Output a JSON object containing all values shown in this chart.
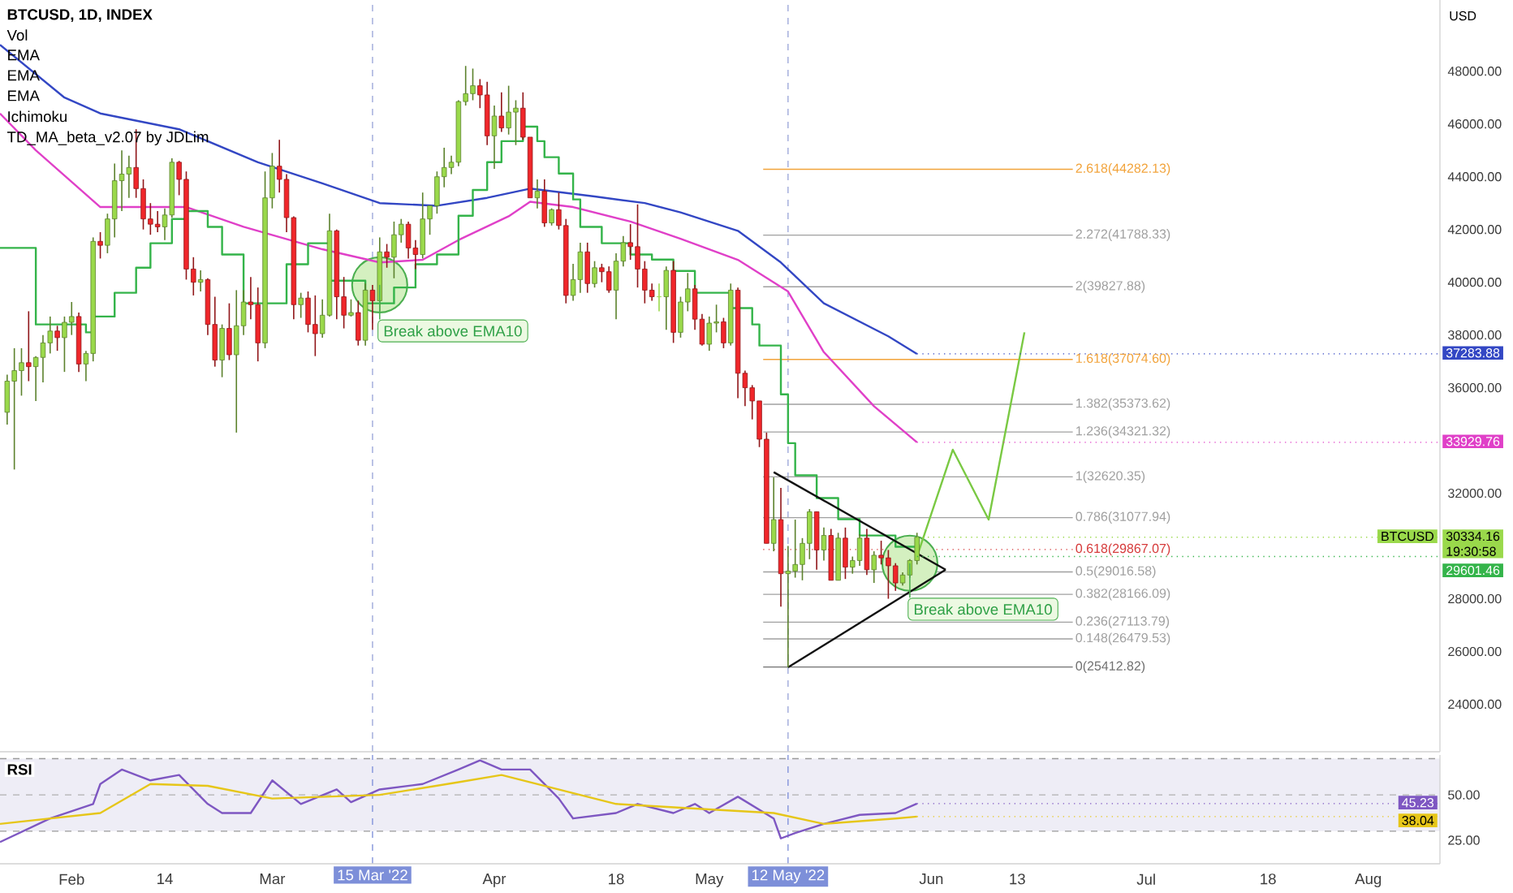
{
  "chart_data": [
    {
      "type": "candlestick",
      "title": "BTCUSD, 1D, INDEX",
      "ylabel": "USD",
      "xlim": [
        "2022-01-22",
        "2022-08-11"
      ],
      "ylim": [
        22200,
        50700
      ],
      "tick_labels": "y",
      "yticks": [
        {
          "value": 24000,
          "label": "24000.00"
        },
        {
          "value": 26000,
          "label": "26000.00"
        },
        {
          "value": 28000,
          "label": "28000.00"
        },
        {
          "value": 32000,
          "label": "32000.00"
        },
        {
          "value": 36000,
          "label": "36000.00"
        },
        {
          "value": 38000,
          "label": "38000.00"
        },
        {
          "value": 40000,
          "label": "40000.00"
        },
        {
          "value": 42000,
          "label": "42000.00"
        },
        {
          "value": 44000,
          "label": "44000.00"
        },
        {
          "value": 46000,
          "label": "46000.00"
        },
        {
          "value": 48000,
          "label": "48000.00"
        }
      ],
      "series": [
        {
          "name": "BTCUSD",
          "colors": [
            "#9ad94b",
            "#9ad94b",
            "#9ad94b",
            "#f0262a",
            "#9ad94b",
            "#9ad94b",
            "#9ad94b",
            "#f0262a",
            "#9ad94b",
            "#9ad94b",
            "#f0262a",
            "#9ad94b",
            "#9ad94b",
            "#f0262a",
            "#9ad94b",
            "#9ad94b",
            "#9ad94b",
            "#9ad94b",
            "#f0262a",
            "#f0262a",
            "#f0262a",
            "#f0262a",
            "#9ad94b",
            "#9ad94b",
            "#f0262a",
            "#f0262a",
            "#f0262a",
            "#9ad94b",
            "#f0262a",
            "#f0262a",
            "#9ad94b",
            "#f0262a",
            "#9ad94b",
            "#9ad94b",
            "#f0262a",
            "#f0262a",
            "#9ad94b",
            "#9ad94b",
            "#f0262a",
            "#f0262a",
            "#f0262a",
            "#9ad94b",
            "#f0262a",
            "#f0262a",
            "#9ad94b",
            "#9ad94b",
            "#f0262a",
            "#f0262a",
            "#9ad94b",
            "#f0262a",
            "#9ad94b",
            "#f0262a",
            "#9ad94b",
            "#f0262a",
            "#9ad94b",
            "#9ad94b",
            "#f0262a",
            "#f0262a",
            "#9ad94b",
            "#9ad94b",
            "#9ad94b",
            "#9ad94b",
            "#9ad94b",
            "#9ad94b",
            "#9ad94b",
            "#9ad94b",
            "#f0262a",
            "#f0262a",
            "#9ad94b",
            "#f0262a",
            "#9ad94b",
            "#9ad94b",
            "#f0262a",
            "#f0262a",
            "#9ad94b",
            "#f0262a",
            "#9ad94b",
            "#f0262a",
            "#f0262a",
            "#9ad94b",
            "#9ad94b",
            "#f0262a",
            "#9ad94b",
            "#f0262a",
            "#f0262a",
            "#9ad94b",
            "#9ad94b",
            "#f0262a",
            "#f0262a",
            "#f0262a",
            "#f0262a",
            "#9ad94b",
            "#9ad94b",
            "#f0262a",
            "#9ad94b",
            "#9ad94b",
            "#f0262a",
            "#f0262a",
            "#9ad94b",
            "#9ad94b",
            "#f0262a",
            "#9ad94b",
            "#f0262a",
            "#f0262a",
            "#f0262a",
            "#f0262a",
            "#f0262a",
            "#9ad94b",
            "#f0262a",
            "#9ad94b",
            "#9ad94b",
            "#9ad94b",
            "#9ad94b",
            "#f0262a",
            "#9ad94b",
            "#f0262a",
            "#9ad94b",
            "#f0262a",
            "#9ad94b",
            "#9ad94b",
            "#f0262a",
            "#9ad94b",
            "#f0262a",
            "#f0262a",
            "#f0262a",
            "#9ad94b",
            "#9ad94b",
            "#9ad94b"
          ],
          "x": [
            "2022-01-23",
            "2022-01-24",
            "2022-01-25",
            "2022-01-26",
            "2022-01-27",
            "2022-01-28",
            "2022-01-29",
            "2022-01-30",
            "2022-01-31",
            "2022-02-01",
            "2022-02-02",
            "2022-02-03",
            "2022-02-04",
            "2022-02-05",
            "2022-02-06",
            "2022-02-07",
            "2022-02-08",
            "2022-02-09",
            "2022-02-10",
            "2022-02-11",
            "2022-02-12",
            "2022-02-13",
            "2022-02-14",
            "2022-02-15",
            "2022-02-16",
            "2022-02-17",
            "2022-02-18",
            "2022-02-19",
            "2022-02-20",
            "2022-02-21",
            "2022-02-22",
            "2022-02-23",
            "2022-02-24",
            "2022-02-25",
            "2022-02-26",
            "2022-02-27",
            "2022-02-28",
            "2022-03-01",
            "2022-03-02",
            "2022-03-03",
            "2022-03-04",
            "2022-03-05",
            "2022-03-06",
            "2022-03-07",
            "2022-03-08",
            "2022-03-09",
            "2022-03-10",
            "2022-03-11",
            "2022-03-12",
            "2022-03-13",
            "2022-03-14",
            "2022-03-15",
            "2022-03-16",
            "2022-03-17",
            "2022-03-18",
            "2022-03-19",
            "2022-03-20",
            "2022-03-21",
            "2022-03-22",
            "2022-03-23",
            "2022-03-24",
            "2022-03-25",
            "2022-03-26",
            "2022-03-27",
            "2022-03-28",
            "2022-03-29",
            "2022-03-30",
            "2022-03-31",
            "2022-04-01",
            "2022-04-02",
            "2022-04-03",
            "2022-04-04",
            "2022-04-05",
            "2022-04-06",
            "2022-04-07",
            "2022-04-08",
            "2022-04-09",
            "2022-04-10",
            "2022-04-11",
            "2022-04-12",
            "2022-04-13",
            "2022-04-14",
            "2022-04-15",
            "2022-04-16",
            "2022-04-17",
            "2022-04-18",
            "2022-04-19",
            "2022-04-20",
            "2022-04-21",
            "2022-04-22",
            "2022-04-23",
            "2022-04-24",
            "2022-04-25",
            "2022-04-26",
            "2022-04-27",
            "2022-04-28",
            "2022-04-29",
            "2022-04-30",
            "2022-05-01",
            "2022-05-02",
            "2022-05-03",
            "2022-05-04",
            "2022-05-05",
            "2022-05-06",
            "2022-05-07",
            "2022-05-08",
            "2022-05-09",
            "2022-05-10",
            "2022-05-11",
            "2022-05-12",
            "2022-05-13",
            "2022-05-14",
            "2022-05-15",
            "2022-05-16",
            "2022-05-17",
            "2022-05-18",
            "2022-05-19",
            "2022-05-20",
            "2022-05-21",
            "2022-05-22",
            "2022-05-23",
            "2022-05-24",
            "2022-05-25",
            "2022-05-26",
            "2022-05-27",
            "2022-05-28",
            "2022-05-29",
            "2022-05-30"
          ],
          "ohlc": [
            [
              35070,
              36500,
              34600,
              36250
            ],
            [
              36250,
              37500,
              32900,
              36650
            ],
            [
              36650,
              37500,
              35700,
              36950
            ],
            [
              36950,
              38900,
              36250,
              36800
            ],
            [
              36800,
              37200,
              35500,
              37150
            ],
            [
              37150,
              38000,
              36200,
              37700
            ],
            [
              37700,
              38700,
              37300,
              38150
            ],
            [
              38150,
              38350,
              37400,
              37900
            ],
            [
              37900,
              38700,
              36600,
              38480
            ],
            [
              38480,
              39250,
              38000,
              38700
            ],
            [
              38700,
              38850,
              36600,
              36900
            ],
            [
              36900,
              37400,
              36250,
              37300
            ],
            [
              37300,
              41700,
              37000,
              41550
            ],
            [
              41550,
              41900,
              40900,
              41400
            ],
            [
              41400,
              42600,
              41100,
              42400
            ],
            [
              42400,
              44500,
              41700,
              43850
            ],
            [
              43850,
              45000,
              42700,
              44100
            ],
            [
              44100,
              44800,
              43200,
              44350
            ],
            [
              44350,
              45800,
              43200,
              43550
            ],
            [
              43550,
              43900,
              42000,
              42400
            ],
            [
              42400,
              43000,
              41800,
              42200
            ],
            [
              42200,
              42700,
              41900,
              42100
            ],
            [
              42100,
              42800,
              41600,
              42550
            ],
            [
              42550,
              44700,
              42450,
              44550
            ],
            [
              44550,
              44600,
              43300,
              43900
            ],
            [
              43900,
              44200,
              40100,
              40500
            ],
            [
              40500,
              40950,
              39500,
              40000
            ],
            [
              40000,
              40450,
              39650,
              40100
            ],
            [
              40100,
              40150,
              38000,
              38400
            ],
            [
              38400,
              39450,
              36800,
              37050
            ],
            [
              37050,
              38400,
              36400,
              38250
            ],
            [
              38250,
              39200,
              37050,
              37250
            ],
            [
              37250,
              39700,
              34300,
              38350
            ],
            [
              38350,
              39700,
              38000,
              39250
            ],
            [
              39250,
              40200,
              38600,
              39150
            ],
            [
              39150,
              39800,
              37000,
              37700
            ],
            [
              37700,
              44200,
              37500,
              43200
            ],
            [
              43200,
              44900,
              42800,
              44400
            ],
            [
              44400,
              45400,
              43400,
              43900
            ],
            [
              43900,
              44100,
              41900,
              42450
            ],
            [
              42450,
              42500,
              38600,
              39150
            ],
            [
              39150,
              39600,
              38650,
              39400
            ],
            [
              39400,
              39650,
              38100,
              38400
            ],
            [
              38400,
              39500,
              37200,
              38050
            ],
            [
              38050,
              39350,
              37900,
              38750
            ],
            [
              38750,
              42600,
              38700,
              41950
            ],
            [
              41950,
              42000,
              38600,
              39450
            ],
            [
              39450,
              40200,
              38250,
              38750
            ],
            [
              38750,
              39350,
              38700,
              38850
            ],
            [
              38850,
              39300,
              37600,
              37800
            ],
            [
              37800,
              39950,
              37600,
              39700
            ],
            [
              39700,
              39900,
              38200,
              39300
            ],
            [
              39300,
              41700,
              38900,
              41150
            ],
            [
              41150,
              41450,
              40550,
              40950
            ],
            [
              40950,
              42300,
              40150,
              41800
            ],
            [
              41800,
              42400,
              41500,
              42200
            ],
            [
              42200,
              42300,
              40900,
              41300
            ],
            [
              41300,
              41600,
              40500,
              41050
            ],
            [
              41050,
              43400,
              40900,
              42400
            ],
            [
              42400,
              42900,
              41800,
              42900
            ],
            [
              42900,
              44200,
              42600,
              44000
            ],
            [
              44000,
              45100,
              43600,
              44350
            ],
            [
              44350,
              44800,
              44100,
              44550
            ],
            [
              44550,
              46900,
              44400,
              46850
            ],
            [
              46850,
              48200,
              46700,
              47150
            ],
            [
              47150,
              48100,
              46900,
              47450
            ],
            [
              47450,
              47700,
              46600,
              47100
            ],
            [
              47100,
              47600,
              45200,
              45550
            ],
            [
              45550,
              46700,
              44300,
              46300
            ],
            [
              46300,
              47200,
              45700,
              45850
            ],
            [
              45850,
              47450,
              45600,
              46450
            ],
            [
              46450,
              46900,
              45200,
              46600
            ],
            [
              46600,
              47200,
              45400,
              45500
            ],
            [
              45500,
              45500,
              43200,
              43200
            ],
            [
              43200,
              43900,
              42800,
              43450
            ],
            [
              43450,
              43900,
              42100,
              42250
            ],
            [
              42250,
              42800,
              42150,
              42750
            ],
            [
              42750,
              43400,
              42000,
              42150
            ],
            [
              42150,
              42400,
              39200,
              39500
            ],
            [
              39500,
              40700,
              39300,
              40100
            ],
            [
              40100,
              41500,
              39600,
              41150
            ],
            [
              41150,
              41500,
              39600,
              39950
            ],
            [
              39950,
              40800,
              39800,
              40550
            ],
            [
              40550,
              40700,
              40000,
              40400
            ],
            [
              40400,
              40600,
              39600,
              39700
            ],
            [
              39700,
              41100,
              38600,
              40800
            ],
            [
              40800,
              41750,
              40600,
              41500
            ],
            [
              41500,
              42200,
              40850,
              41350
            ],
            [
              41350,
              42950,
              39800,
              40500
            ],
            [
              40500,
              40800,
              39200,
              39700
            ],
            [
              39700,
              39950,
              39300,
              39450
            ],
            [
              39450,
              39950,
              38900,
              39450
            ],
            [
              39450,
              40600,
              38200,
              40450
            ],
            [
              40450,
              40800,
              37700,
              38100
            ],
            [
              38100,
              39450,
              37900,
              39250
            ],
            [
              39250,
              40350,
              38900,
              39750
            ],
            [
              39750,
              39900,
              38200,
              38600
            ],
            [
              38600,
              38800,
              37600,
              37650
            ],
            [
              37650,
              38700,
              37400,
              38450
            ],
            [
              38450,
              39150,
              38100,
              38500
            ],
            [
              38500,
              38650,
              37500,
              37700
            ],
            [
              37700,
              39950,
              37600,
              39700
            ],
            [
              39700,
              39800,
              35600,
              36550
            ],
            [
              36550,
              36650,
              35300,
              36000
            ],
            [
              36000,
              36100,
              34800,
              35500
            ],
            [
              35500,
              35500,
              33750,
              34050
            ],
            [
              34050,
              34300,
              30100,
              30100
            ],
            [
              30100,
              32600,
              29800,
              31000
            ],
            [
              31000,
              32200,
              27700,
              28950
            ],
            [
              28950,
              30000,
              25400,
              29050
            ],
            [
              29050,
              31000,
              28800,
              29300
            ],
            [
              29300,
              30300,
              28700,
              30100
            ],
            [
              30100,
              31400,
              29500,
              31300
            ],
            [
              31300,
              31300,
              29100,
              29850
            ],
            [
              29850,
              30700,
              29450,
              30400
            ],
            [
              30400,
              30650,
              28700,
              28700
            ],
            [
              28700,
              30500,
              28700,
              30300
            ],
            [
              30300,
              30700,
              28750,
              29200
            ],
            [
              29200,
              29600,
              28950,
              29450
            ],
            [
              29450,
              30450,
              29250,
              30300
            ],
            [
              30300,
              30650,
              28900,
              29100
            ],
            [
              29100,
              29800,
              28600,
              29650
            ],
            [
              29650,
              30200,
              29300,
              29550
            ],
            [
              29550,
              29850,
              28000,
              29250
            ],
            [
              29250,
              29350,
              28300,
              28600
            ],
            [
              28600,
              29000,
              28500,
              28900
            ],
            [
              28900,
              29500,
              28800,
              29450
            ],
            [
              29450,
              30500,
              29300,
              30334.16
            ]
          ],
          "value_labels": [
            null,
            null,
            null,
            null,
            null,
            null,
            null,
            null,
            null,
            null,
            null,
            null,
            null,
            null,
            null,
            null,
            null,
            null,
            null,
            null,
            null,
            null,
            null,
            null,
            null,
            null,
            null,
            null,
            null,
            null,
            null,
            null,
            null,
            null,
            null,
            null,
            null,
            null,
            null,
            null,
            null,
            null,
            null,
            null,
            null,
            null,
            null,
            null,
            null,
            null,
            null,
            null,
            null,
            null,
            null,
            null,
            null,
            null,
            null,
            null,
            null,
            null,
            null,
            null,
            null,
            null,
            null,
            null,
            null,
            null,
            null,
            null,
            null,
            null,
            null,
            null,
            null,
            null,
            null,
            null,
            null,
            null,
            null,
            null,
            null,
            null,
            null,
            null,
            null,
            null,
            null,
            null,
            null,
            null,
            null,
            null,
            null,
            null,
            null,
            null,
            null,
            null,
            null,
            null,
            null,
            null,
            null,
            null,
            null,
            null,
            null,
            null,
            null,
            null,
            null,
            null,
            null,
            null,
            null,
            null,
            null,
            null,
            null,
            null,
            null,
            null,
            null,
            "30334.16"
          ]
        },
        {
          "type": "line",
          "color": "#3347c4",
          "x": [
            "2022-01-22",
            "2022-01-31",
            "2022-02-05",
            "2022-02-16",
            "2022-02-27",
            "2022-03-08",
            "2022-03-16",
            "2022-03-24",
            "2022-03-31",
            "2022-04-06",
            "2022-04-15",
            "2022-04-22",
            "2022-04-27",
            "2022-05-05",
            "2022-05-11",
            "2022-05-17",
            "2022-05-26",
            "2022-05-30"
          ],
          "values": [
            49000,
            47000,
            46400,
            45800,
            44550,
            43750,
            43000,
            42900,
            43200,
            43550,
            43250,
            43000,
            42650,
            41950,
            40750,
            39200,
            37950,
            37283.88
          ],
          "value_labels": [
            null,
            null,
            null,
            null,
            null,
            null,
            null,
            null,
            null,
            null,
            null,
            null,
            null,
            null,
            null,
            null,
            null,
            "37283.88"
          ]
        },
        {
          "type": "line",
          "color": "#e040c8",
          "x": [
            "2022-01-22",
            "2022-01-27",
            "2022-02-05",
            "2022-02-17",
            "2022-02-25",
            "2022-03-08",
            "2022-03-16",
            "2022-03-22",
            "2022-03-27",
            "2022-04-03",
            "2022-04-06",
            "2022-04-12",
            "2022-04-20",
            "2022-04-27",
            "2022-05-05",
            "2022-05-12",
            "2022-05-17",
            "2022-05-24",
            "2022-05-30"
          ],
          "values": [
            46400,
            45000,
            42850,
            42850,
            42100,
            41250,
            40750,
            40850,
            41600,
            42500,
            43050,
            42850,
            42300,
            41650,
            40850,
            39650,
            37350,
            35300,
            33929.76
          ],
          "value_labels": [
            null,
            null,
            null,
            null,
            null,
            null,
            null,
            null,
            null,
            null,
            null,
            null,
            null,
            null,
            null,
            null,
            null,
            null,
            "33929.76"
          ]
        },
        {
          "type": "step",
          "color": "#34b44a",
          "x": [
            "2022-01-22",
            "2022-01-27",
            "2022-02-03",
            "2022-02-04",
            "2022-02-07",
            "2022-02-10",
            "2022-02-12",
            "2022-02-15",
            "2022-02-17",
            "2022-02-20",
            "2022-02-22",
            "2022-02-25",
            "2022-03-01",
            "2022-03-03",
            "2022-03-06",
            "2022-03-09",
            "2022-03-14",
            "2022-03-18",
            "2022-03-21",
            "2022-03-24",
            "2022-03-27",
            "2022-03-29",
            "2022-03-31",
            "2022-04-02",
            "2022-04-05",
            "2022-04-07",
            "2022-04-08",
            "2022-04-10",
            "2022-04-12",
            "2022-04-13",
            "2022-04-16",
            "2022-04-20",
            "2022-04-23",
            "2022-04-26",
            "2022-04-29",
            "2022-05-04",
            "2022-05-07",
            "2022-05-08",
            "2022-05-11",
            "2022-05-12",
            "2022-05-13",
            "2022-05-16",
            "2022-05-19",
            "2022-05-22",
            "2022-05-27",
            "2022-05-30"
          ],
          "values": [
            41300,
            38400,
            38100,
            38700,
            39600,
            40550,
            41480,
            42400,
            42700,
            42100,
            41050,
            39200,
            39200,
            40680,
            41480,
            40060,
            39200,
            39800,
            40680,
            41050,
            42520,
            43500,
            44550,
            45350,
            45900,
            45350,
            44740,
            44120,
            43140,
            42100,
            41480,
            41050,
            40860,
            40430,
            39600,
            39020,
            38400,
            37600,
            35750,
            33900,
            32680,
            31820,
            31020,
            30400,
            29970,
            29601.46
          ],
          "value_labels": [
            null,
            null,
            null,
            null,
            null,
            null,
            null,
            null,
            null,
            null,
            null,
            null,
            null,
            null,
            null,
            null,
            null,
            null,
            null,
            null,
            null,
            null,
            null,
            null,
            null,
            null,
            null,
            null,
            null,
            null,
            null,
            null,
            null,
            null,
            null,
            null,
            null,
            null,
            null,
            null,
            null,
            null,
            null,
            null,
            null,
            "29601.46"
          ]
        },
        {
          "type": "line",
          "color": "#111111",
          "x": [
            "2022-05-10",
            "2022-06-03"
          ],
          "values": [
            32800,
            29100
          ]
        },
        {
          "type": "line",
          "color": "#111111",
          "x": [
            "2022-05-12",
            "2022-06-03"
          ],
          "values": [
            25400,
            29100
          ]
        },
        {
          "type": "line",
          "color": "#7ac943",
          "x": [
            "2022-05-30",
            "2022-06-04",
            "2022-06-09",
            "2022-06-14"
          ],
          "values": [
            29600,
            33650,
            31000,
            38100
          ]
        }
      ],
      "ref_lines": [
        {
          "axis": "x",
          "value": "2022-03-15",
          "color": "#9aa5d8",
          "line_style": "dashed"
        },
        {
          "axis": "x",
          "value": "2022-05-12",
          "color": "#9aa5d8",
          "line_style": "dashed"
        },
        {
          "axis": "y",
          "value": 44282.13,
          "label": "2.618(44282.13)",
          "color": "#f2a33a"
        },
        {
          "axis": "y",
          "value": 41788.33,
          "label": "2.272(41788.33)",
          "color": "#a0a0a0"
        },
        {
          "axis": "y",
          "value": 39827.88,
          "label": "2(39827.88)",
          "color": "#a0a0a0"
        },
        {
          "axis": "y",
          "value": 37074.6,
          "label": "1.618(37074.60)",
          "color": "#f2a33a"
        },
        {
          "axis": "y",
          "value": 35373.62,
          "label": "1.382(35373.62)",
          "color": "#a0a0a0"
        },
        {
          "axis": "y",
          "value": 34321.32,
          "label": "1.236(34321.32)",
          "color": "#a0a0a0"
        },
        {
          "axis": "y",
          "value": 32620.35,
          "label": "1(32620.35)",
          "color": "#a0a0a0"
        },
        {
          "axis": "y",
          "value": 31077.94,
          "label": "0.786(31077.94)",
          "color": "#a0a0a0"
        },
        {
          "axis": "y",
          "value": 29867.07,
          "label": "0.618(29867.07)",
          "color": "#d63b3b",
          "line_style": "dotted"
        },
        {
          "axis": "y",
          "value": 29016.58,
          "label": "0.5(29016.58)",
          "color": "#a0a0a0"
        },
        {
          "axis": "y",
          "value": 28166.09,
          "label": "0.382(28166.09)",
          "color": "#a0a0a0"
        },
        {
          "axis": "y",
          "value": 27113.79,
          "label": "0.236(27113.79)",
          "color": "#a0a0a0"
        },
        {
          "axis": "y",
          "value": 26479.53,
          "label": "0.148(26479.53)",
          "color": "#a0a0a0"
        },
        {
          "axis": "y",
          "value": 25412.82,
          "label": "0(25412.82)",
          "color": "#707070"
        }
      ],
      "annotations": [
        "Vol",
        "EMA",
        "EMA",
        "EMA",
        "Ichimoku",
        "TD_MA_beta_v2.07 by JDLim",
        {
          "text": "Break above EMA10",
          "x": "2022-03-16",
          "y": 39900
        },
        {
          "text": "Break above EMA10",
          "x": "2022-05-29",
          "y": 29350
        },
        {
          "text": "19:30:58",
          "x": "2022-05-30",
          "y": 30334.16
        }
      ]
    },
    {
      "type": "line",
      "title": "RSI",
      "xlim": [
        "2022-01-22",
        "2022-08-11"
      ],
      "ylim": [
        12,
        72
      ],
      "xticks": [
        {
          "value": "2022-02-01",
          "label": "Feb"
        },
        {
          "value": "2022-02-14",
          "label": "14"
        },
        {
          "value": "2022-03-01",
          "label": "Mar"
        },
        {
          "value": "2022-04-01",
          "label": "Apr"
        },
        {
          "value": "2022-04-18",
          "label": "18"
        },
        {
          "value": "2022-05-01",
          "label": "May"
        },
        {
          "value": "2022-06-01",
          "label": "Jun"
        },
        {
          "value": "2022-06-13",
          "label": "13"
        },
        {
          "value": "2022-07-01",
          "label": "Jul"
        },
        {
          "value": "2022-07-18",
          "label": "18"
        },
        {
          "value": "2022-08-01",
          "label": "Aug"
        }
      ],
      "yticks": [
        {
          "value": 50,
          "label": "50.00"
        },
        {
          "value": 25,
          "label": "25.00"
        }
      ],
      "bands": [
        {
          "axis": "y",
          "from": 30,
          "to": 70,
          "color": "#eeedf6"
        }
      ],
      "ref_lines": [
        {
          "axis": "y",
          "value": 70,
          "color": "#9a9a9a",
          "line_style": "dashed"
        },
        {
          "axis": "y",
          "value": 50,
          "color": "#b0b0b0",
          "line_style": "dashed"
        },
        {
          "axis": "y",
          "value": 30,
          "color": "#9a9a9a",
          "line_style": "dashed"
        },
        {
          "axis": "x",
          "value": "2022-03-15",
          "label": "15 Mar '22",
          "color": "#7d8fd9",
          "line_style": "dashed"
        },
        {
          "axis": "x",
          "value": "2022-05-12",
          "label": "12 May '22",
          "color": "#7d8fd9",
          "line_style": "dashed"
        }
      ],
      "series": [
        {
          "color": "#7e57c2",
          "x": [
            "2022-01-22",
            "2022-01-29",
            "2022-02-04",
            "2022-02-05",
            "2022-02-08",
            "2022-02-12",
            "2022-02-16",
            "2022-02-20",
            "2022-02-22",
            "2022-02-26",
            "2022-03-01",
            "2022-03-05",
            "2022-03-10",
            "2022-03-12",
            "2022-03-16",
            "2022-03-22",
            "2022-03-27",
            "2022-03-30",
            "2022-04-02",
            "2022-04-06",
            "2022-04-10",
            "2022-04-12",
            "2022-04-18",
            "2022-04-21",
            "2022-04-26",
            "2022-04-29",
            "2022-05-01",
            "2022-05-05",
            "2022-05-10",
            "2022-05-11",
            "2022-05-13",
            "2022-05-17",
            "2022-05-22",
            "2022-05-27",
            "2022-05-30"
          ],
          "values": [
            24,
            37,
            45,
            56,
            64,
            58,
            61,
            45,
            40,
            40,
            58,
            45,
            53,
            46,
            53,
            56,
            64,
            69,
            64,
            64,
            48,
            37,
            40,
            45,
            40,
            45,
            40,
            49,
            37,
            26,
            29,
            34,
            39,
            40,
            45.23
          ],
          "value_labels": [
            null,
            null,
            null,
            null,
            null,
            null,
            null,
            null,
            null,
            null,
            null,
            null,
            null,
            null,
            null,
            null,
            null,
            null,
            null,
            null,
            null,
            null,
            null,
            null,
            null,
            null,
            null,
            null,
            null,
            null,
            null,
            null,
            null,
            null,
            "45.23"
          ]
        },
        {
          "color": "#e6c619",
          "x": [
            "2022-01-22",
            "2022-02-05",
            "2022-02-12",
            "2022-02-20",
            "2022-03-01",
            "2022-03-16",
            "2022-03-27",
            "2022-04-02",
            "2022-04-10",
            "2022-04-18",
            "2022-05-01",
            "2022-05-10",
            "2022-05-17",
            "2022-05-27",
            "2022-05-30"
          ],
          "values": [
            34,
            40,
            56,
            55,
            48,
            50,
            57,
            61,
            53,
            45,
            42,
            40,
            34,
            37,
            38.04
          ],
          "value_labels": [
            null,
            null,
            null,
            null,
            null,
            null,
            null,
            null,
            null,
            null,
            null,
            null,
            null,
            null,
            "38.04"
          ]
        }
      ]
    }
  ]
}
